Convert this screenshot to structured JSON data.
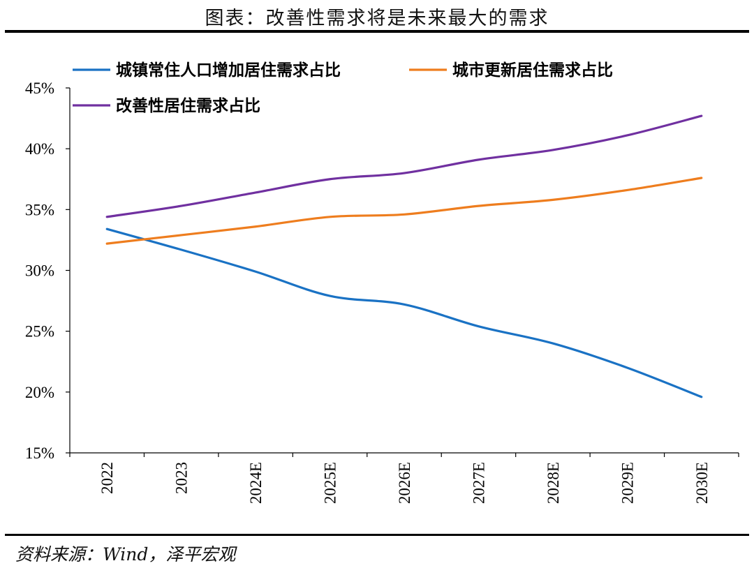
{
  "title": "图表：改善性需求将是未来最大的需求",
  "source": "资料来源：Wind，泽平宏观",
  "chart_data": {
    "type": "line",
    "categories": [
      "2022",
      "2023",
      "2024E",
      "2025E",
      "2026E",
      "2027E",
      "2028E",
      "2029E",
      "2030E"
    ],
    "series": [
      {
        "name": "城镇常住人口增加居住需求占比",
        "color": "#1A72C4",
        "values": [
          33.4,
          31.7,
          29.9,
          27.9,
          27.2,
          25.4,
          24.0,
          22.0,
          19.6
        ]
      },
      {
        "name": "城市更新居住需求占比",
        "color": "#EE7D1E",
        "values": [
          32.2,
          32.9,
          33.6,
          34.4,
          34.6,
          35.3,
          35.8,
          36.6,
          37.6
        ]
      },
      {
        "name": "改善性居住需求占比",
        "color": "#7030A0",
        "values": [
          34.4,
          35.3,
          36.4,
          37.5,
          38.0,
          39.1,
          39.9,
          41.1,
          42.7
        ]
      }
    ],
    "yticks": [
      "15%",
      "20%",
      "25%",
      "30%",
      "35%",
      "40%",
      "45%"
    ],
    "ylim": [
      15,
      45
    ],
    "legend_position": "top-left",
    "grid": false
  }
}
